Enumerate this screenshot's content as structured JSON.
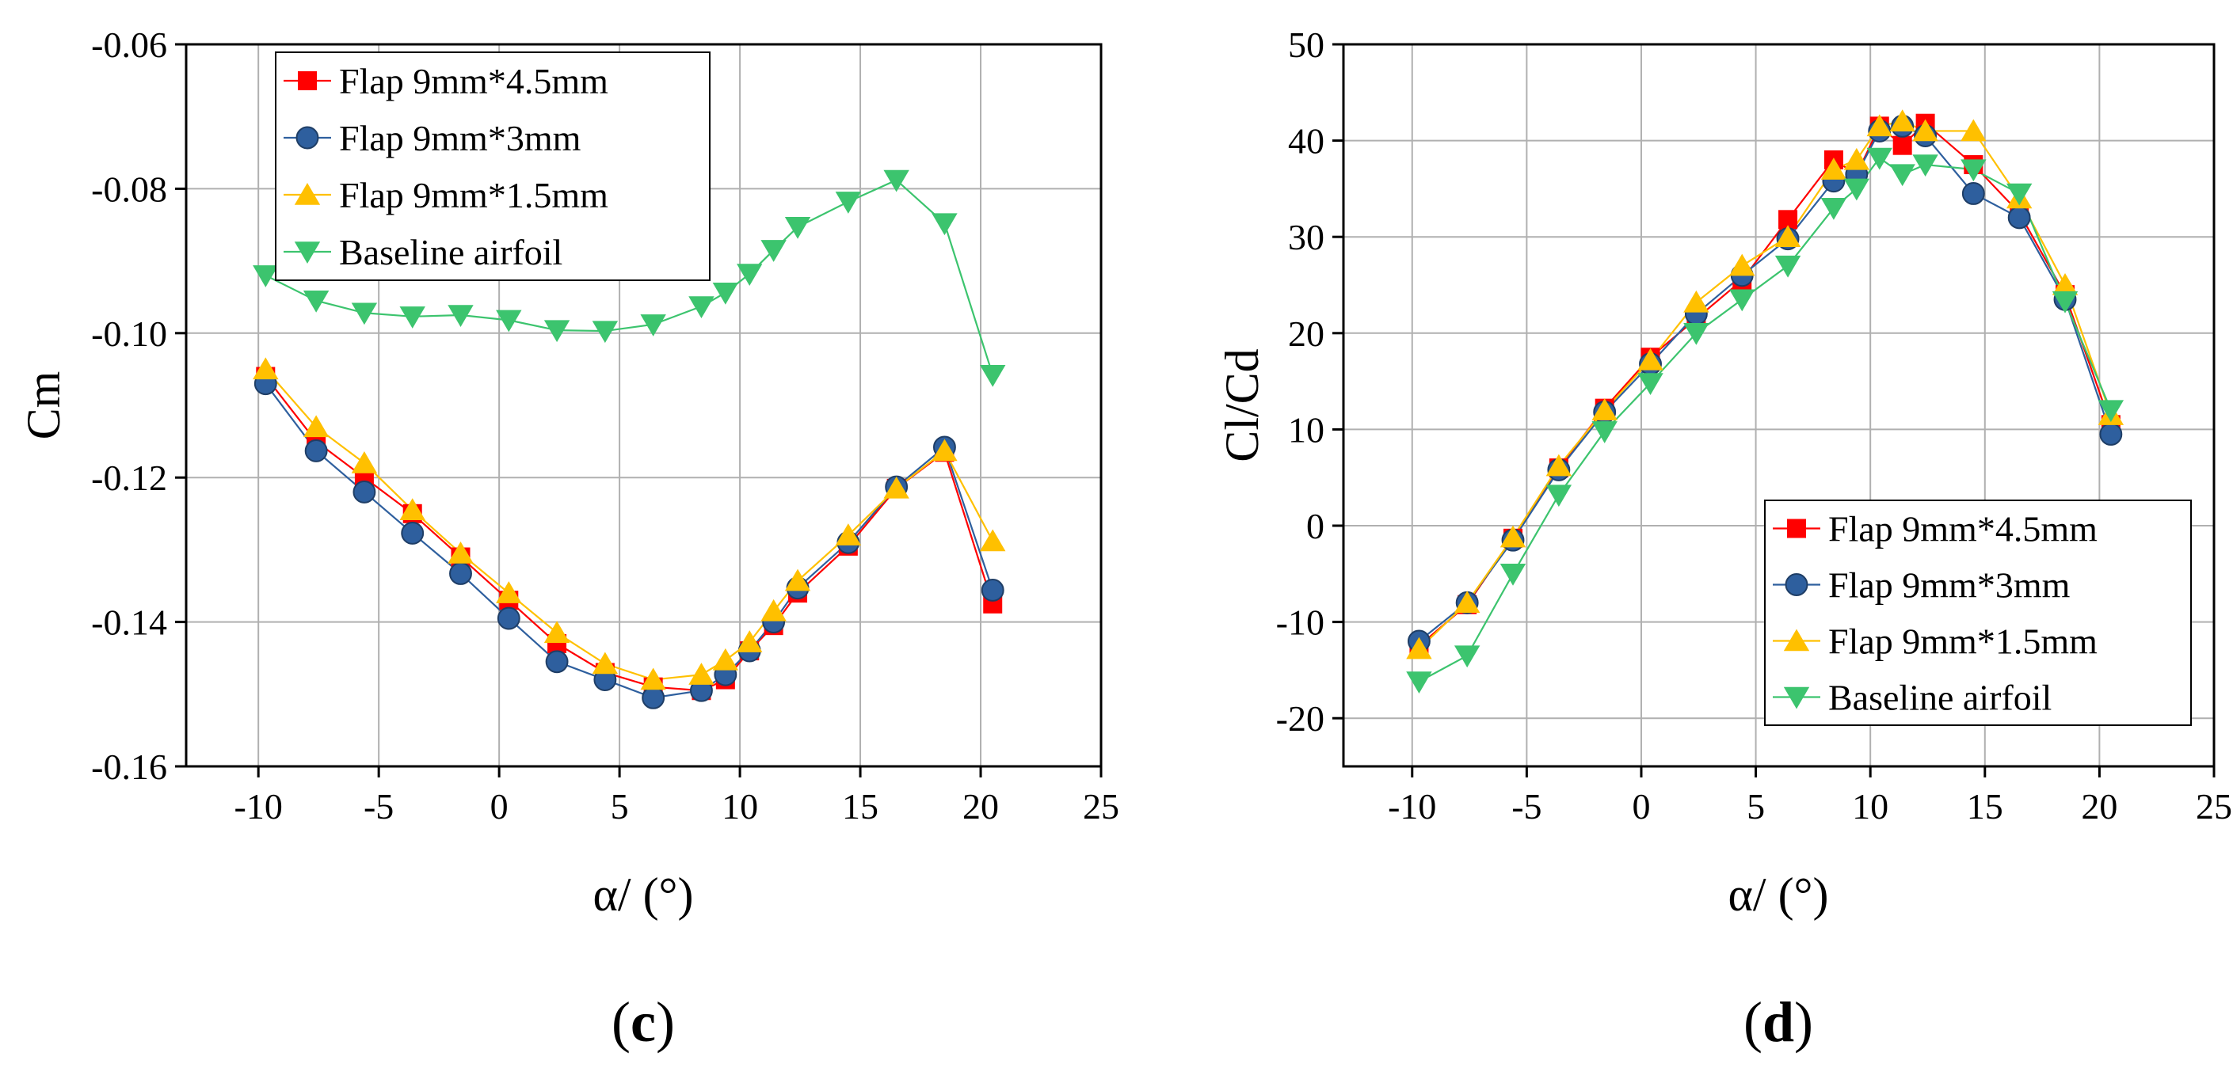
{
  "colors": {
    "red": "#ff0000",
    "blue": "#2e5f9e",
    "yellow": "#ffc000",
    "green": "#3cc46e",
    "grid": "#b0b0b0"
  },
  "chart_data": [
    {
      "type": "line",
      "panel": "(c)",
      "panel_letter": "c",
      "xlabel": "α/ (°)",
      "ylabel": "Cm",
      "xlim": [
        -13,
        25
      ],
      "ylim": [
        -0.16,
        -0.06
      ],
      "xticks": [
        -10,
        -5,
        0,
        5,
        10,
        15,
        20,
        25
      ],
      "yticks": [
        -0.16,
        -0.14,
        -0.12,
        -0.1,
        -0.08,
        -0.06
      ],
      "xtick_labels": [
        "-10",
        "-5",
        "0",
        "5",
        "10",
        "15",
        "20",
        "25"
      ],
      "ytick_labels": [
        "-0.16",
        "-0.14",
        "-0.12",
        "-0.10",
        "-0.08",
        "-0.06"
      ],
      "grid": true,
      "legend_position": "top-left",
      "series": [
        {
          "name": "Flap 9mm*4.5mm",
          "color_key": "red",
          "marker": "square",
          "x": [
            -9.7,
            -7.6,
            -5.6,
            -3.6,
            -1.6,
            0.4,
            2.4,
            4.4,
            6.4,
            8.4,
            9.4,
            10.4,
            11.4,
            12.4,
            14.5,
            16.5,
            18.5,
            20.5
          ],
          "y": [
            -0.106,
            -0.115,
            -0.12,
            -0.125,
            -0.131,
            -0.137,
            -0.143,
            -0.147,
            -0.149,
            -0.1495,
            -0.148,
            -0.144,
            -0.1405,
            -0.136,
            -0.1295,
            -0.1215,
            -0.1165,
            -0.1375
          ]
        },
        {
          "name": "Flap 9mm*3mm",
          "color_key": "blue",
          "marker": "circle",
          "x": [
            -9.7,
            -7.6,
            -5.6,
            -3.6,
            -1.6,
            0.4,
            2.4,
            4.4,
            6.4,
            8.4,
            9.4,
            10.4,
            11.4,
            12.4,
            14.5,
            16.5,
            18.5,
            20.5
          ],
          "y": [
            -0.107,
            -0.1163,
            -0.122,
            -0.1277,
            -0.1333,
            -0.1395,
            -0.1455,
            -0.148,
            -0.1505,
            -0.1495,
            -0.1473,
            -0.144,
            -0.14,
            -0.1353,
            -0.129,
            -0.1213,
            -0.1158,
            -0.1356
          ]
        },
        {
          "name": "Flap 9mm*1.5mm",
          "color_key": "yellow",
          "marker": "triangle-up",
          "x": [
            -9.7,
            -7.6,
            -5.6,
            -3.6,
            -1.6,
            0.4,
            2.4,
            4.4,
            6.4,
            8.4,
            9.4,
            10.4,
            11.4,
            12.4,
            14.5,
            16.5,
            18.5,
            20.5
          ],
          "y": [
            -0.105,
            -0.113,
            -0.118,
            -0.1245,
            -0.1305,
            -0.136,
            -0.1415,
            -0.1458,
            -0.148,
            -0.1473,
            -0.1453,
            -0.1428,
            -0.1385,
            -0.1343,
            -0.128,
            -0.1215,
            -0.1163,
            -0.1288
          ]
        },
        {
          "name": "Baseline airfoil",
          "color_key": "green",
          "marker": "triangle-down",
          "x": [
            -9.7,
            -7.6,
            -5.6,
            -3.6,
            -1.6,
            0.4,
            2.4,
            4.4,
            6.4,
            8.4,
            9.4,
            10.4,
            11.4,
            12.4,
            14.5,
            16.5,
            18.5,
            20.5
          ],
          "y": [
            -0.092,
            -0.0955,
            -0.0972,
            -0.0977,
            -0.0975,
            -0.0982,
            -0.0996,
            -0.0997,
            -0.0988,
            -0.0963,
            -0.0944,
            -0.0918,
            -0.0885,
            -0.0853,
            -0.0818,
            -0.0788,
            -0.0848,
            -0.1058
          ]
        }
      ]
    },
    {
      "type": "line",
      "panel": "(d)",
      "panel_letter": "d",
      "xlabel": "α/ (°)",
      "ylabel": "Cl/Cd",
      "xlim": [
        -13,
        25
      ],
      "ylim": [
        -25,
        50
      ],
      "xticks": [
        -10,
        -5,
        0,
        5,
        10,
        15,
        20,
        25
      ],
      "yticks": [
        -20,
        -10,
        0,
        10,
        20,
        30,
        40,
        50
      ],
      "xtick_labels": [
        "-10",
        "-5",
        "0",
        "5",
        "10",
        "15",
        "20",
        "25"
      ],
      "ytick_labels": [
        "-20",
        "-10",
        "0",
        "10",
        "20",
        "30",
        "40",
        "50"
      ],
      "grid": true,
      "legend_position": "bottom-right",
      "series": [
        {
          "name": "Flap 9mm*4.5mm",
          "color_key": "red",
          "marker": "square",
          "x": [
            -9.7,
            -7.6,
            -5.6,
            -3.6,
            -1.6,
            0.4,
            2.4,
            4.4,
            6.4,
            8.4,
            9.4,
            10.4,
            11.4,
            12.4,
            14.5,
            16.5,
            18.5,
            20.5
          ],
          "y": [
            -12.5,
            -8.2,
            -1.3,
            6.0,
            12.2,
            17.5,
            21.5,
            25.5,
            31.8,
            38.0,
            36.5,
            41.5,
            39.5,
            41.8,
            37.5,
            32.5,
            24.0,
            10.5
          ]
        },
        {
          "name": "Flap 9mm*3mm",
          "color_key": "blue",
          "marker": "circle",
          "x": [
            -9.7,
            -7.6,
            -5.6,
            -3.6,
            -1.6,
            0.4,
            2.4,
            4.4,
            6.4,
            8.4,
            9.4,
            10.4,
            11.4,
            12.4,
            14.5,
            16.5,
            18.5,
            20.5
          ],
          "y": [
            -12.0,
            -8.0,
            -1.5,
            5.8,
            11.8,
            16.8,
            22.0,
            26.0,
            29.8,
            35.8,
            36.5,
            41.0,
            41.5,
            40.5,
            34.5,
            32.0,
            23.5,
            9.5
          ]
        },
        {
          "name": "Flap 9mm*1.5mm",
          "color_key": "yellow",
          "marker": "triangle-up",
          "x": [
            -9.7,
            -7.6,
            -5.6,
            -3.6,
            -1.6,
            0.4,
            2.4,
            4.4,
            6.4,
            8.4,
            9.4,
            10.4,
            11.4,
            12.4,
            14.5,
            16.5,
            18.5,
            20.5
          ],
          "y": [
            -12.8,
            -8.0,
            -1.2,
            6.2,
            12.0,
            17.2,
            23.2,
            27.0,
            30.0,
            37.0,
            38.0,
            41.5,
            42.0,
            41.0,
            41.0,
            34.0,
            25.0,
            11.5
          ]
        },
        {
          "name": "Baseline airfoil",
          "color_key": "green",
          "marker": "triangle-down",
          "x": [
            -9.7,
            -7.6,
            -5.6,
            -3.6,
            -1.6,
            0.4,
            2.4,
            4.4,
            6.4,
            8.4,
            9.4,
            10.4,
            11.4,
            12.4,
            14.5,
            16.5,
            18.5,
            20.5
          ],
          "y": [
            -16.2,
            -13.5,
            -5.0,
            3.2,
            9.8,
            14.8,
            20.0,
            23.5,
            27.0,
            33.0,
            35.0,
            38.2,
            36.5,
            37.5,
            37.0,
            34.5,
            23.3,
            12.0
          ]
        }
      ]
    }
  ]
}
